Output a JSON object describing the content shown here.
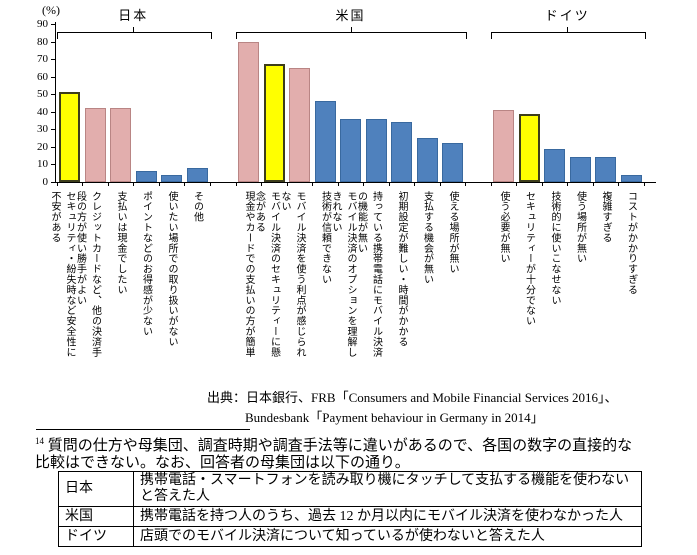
{
  "chart_data": {
    "type": "bar",
    "unit_label": "(%)",
    "ylabel": "(%)",
    "ylim": [
      0,
      90
    ],
    "yticks": [
      0,
      10,
      20,
      30,
      40,
      50,
      60,
      70,
      80,
      90
    ],
    "grid": false,
    "legend": "none",
    "colors": {
      "yellow_fill": "#FFFF00",
      "yellow_border": "#3D3D1A",
      "pink_fill": "#E2AEAD",
      "pink_border": "#B98584",
      "blue_fill": "#4F81BD",
      "blue_border": "#39699F",
      "axis": "#000000"
    },
    "groups": [
      {
        "name": "日本",
        "bars": [
          {
            "label": "セキュリティ・紛失時など安全性に\n不安がある",
            "value": 51,
            "color": "yellow"
          },
          {
            "label": "クレジットカードなど、他の決済手\n段の方が使い勝手がよい",
            "value": 42,
            "color": "pink"
          },
          {
            "label": "支払いは現金でしたい",
            "value": 42,
            "color": "pink"
          },
          {
            "label": "ポイントなどのお得感が少ない",
            "value": 6,
            "color": "blue"
          },
          {
            "label": "使いたい場所での取り扱いがない",
            "value": 4,
            "color": "blue"
          },
          {
            "label": "その他",
            "value": 8,
            "color": "blue"
          }
        ]
      },
      {
        "name": "米国",
        "bars": [
          {
            "label": "現金やカードでの支払いの方が簡単",
            "value": 80,
            "color": "pink"
          },
          {
            "label": "モバイル決済のセキュリティーに懸\n念がある",
            "value": 67,
            "color": "yellow"
          },
          {
            "label": "モバイル決済を使う利点が感じられ\nない",
            "value": 65,
            "color": "pink"
          },
          {
            "label": "技術が信頼できない",
            "value": 46,
            "color": "blue"
          },
          {
            "label": "モバイル決済のオプションを理解し\nきれない",
            "value": 36,
            "color": "blue"
          },
          {
            "label": "持っている携帯電話にモバイル決済\nの機能が無い",
            "value": 36,
            "color": "blue"
          },
          {
            "label": "初期設定が難しい・時間がかかる",
            "value": 34,
            "color": "blue"
          },
          {
            "label": "支払する機会が無い",
            "value": 25,
            "color": "blue"
          },
          {
            "label": "使える場所が無い",
            "value": 22,
            "color": "blue"
          }
        ]
      },
      {
        "name": "ドイツ",
        "bars": [
          {
            "label": "使う必要が無い",
            "value": 41,
            "color": "pink"
          },
          {
            "label": "セキュリティーが十分でない",
            "value": 39,
            "color": "yellow"
          },
          {
            "label": "技術的に使いこなせない",
            "value": 19,
            "color": "blue"
          },
          {
            "label": "使う場所が無い",
            "value": 14,
            "color": "blue"
          },
          {
            "label": "複雑すぎる",
            "value": 14,
            "color": "blue"
          },
          {
            "label": "コストがかかりすぎる",
            "value": 4,
            "color": "blue"
          }
        ]
      }
    ]
  },
  "source": {
    "line1": "出典：日本銀行、FRB「Consumers and Mobile Financial Services 2016」、",
    "line2": "Bundesbank「Payment behaviour in Germany in 2014」"
  },
  "footnote": {
    "marker": "14",
    "text": "質問の仕方や母集団、調査時期や調査手法等に違いがあるので、各国の数字の直接的な\n比較はできない。なお、回答者の母集団は以下の通り。"
  },
  "population_table": {
    "rows": [
      {
        "country": "日本",
        "description": "携帯電話・スマートフォンを読み取り機にタッチして支払する機能を使わないと答えた人"
      },
      {
        "country": "米国",
        "description": "携帯電話を持つ人のうち、過去 12 か月以内にモバイル決済を使わなかった人"
      },
      {
        "country": "ドイツ",
        "description": "店頭でのモバイル決済について知っているが使わないと答えた人"
      }
    ]
  }
}
